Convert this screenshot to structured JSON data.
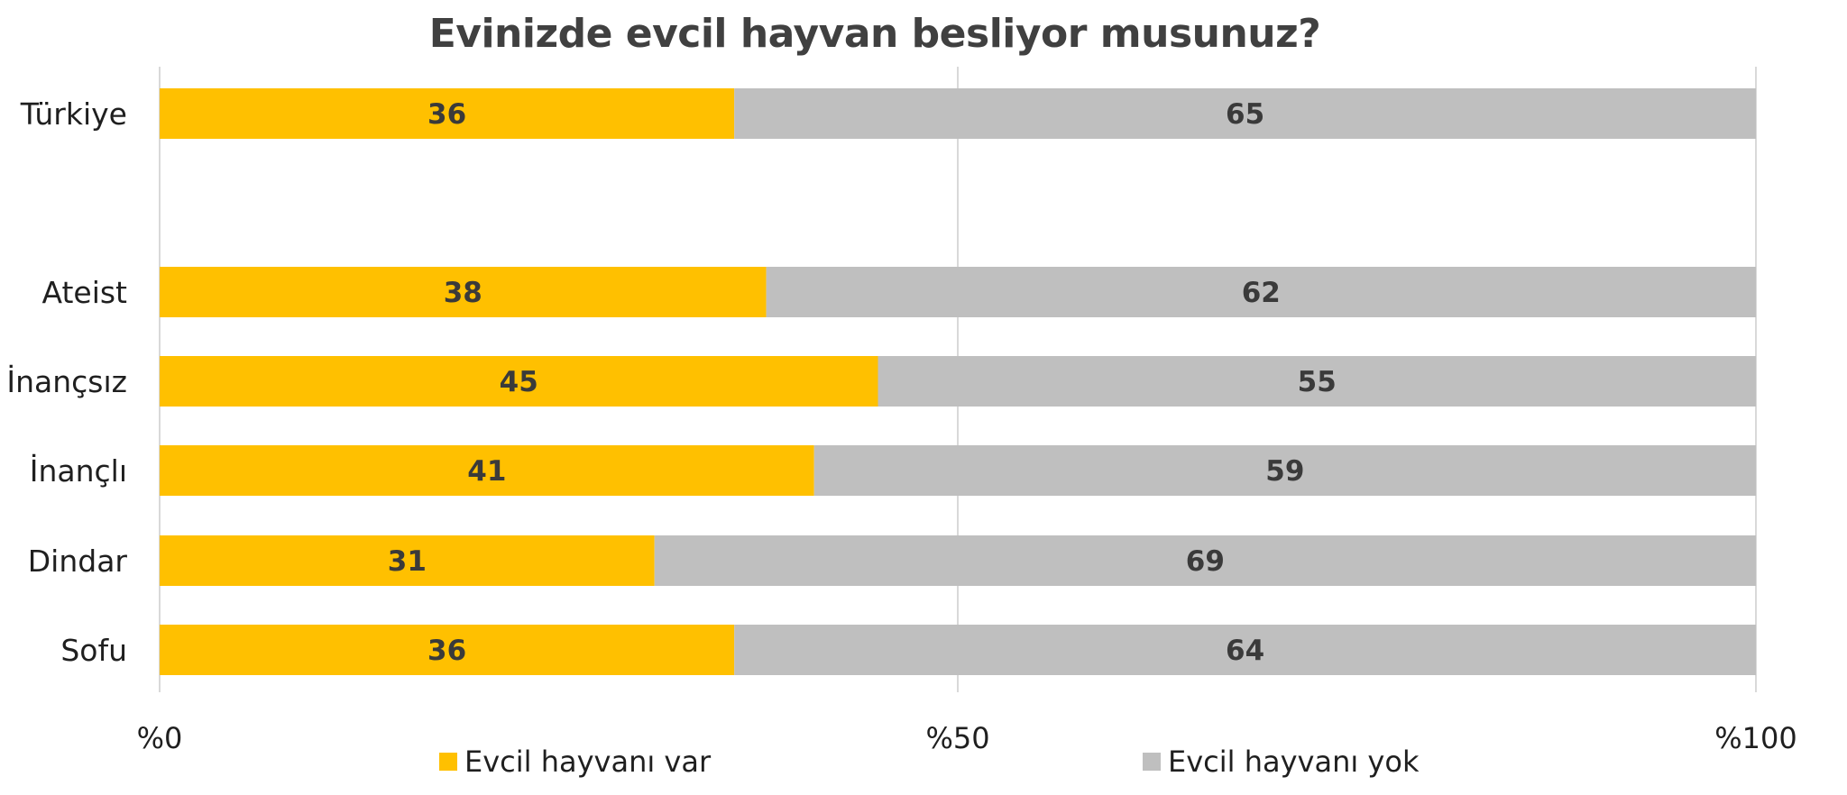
{
  "chart_data": {
    "type": "bar",
    "orientation": "horizontal",
    "stacked": true,
    "title": "Evinizde evcil hayvan besliyor musunuz?",
    "categories": [
      "Türkiye",
      "",
      "Ateist",
      "İnançsız",
      "İnançlı",
      "Dindar",
      "Sofu"
    ],
    "series": [
      {
        "name": "Evcil hayvanı var",
        "color": "#FFC000",
        "values": [
          36,
          null,
          38,
          45,
          41,
          31,
          36
        ]
      },
      {
        "name": "Evcil hayvanı yok",
        "color": "#BFBFBF",
        "values": [
          65,
          null,
          62,
          55,
          59,
          69,
          64
        ]
      }
    ],
    "xlim": [
      0,
      100
    ],
    "xticks": [
      0,
      50,
      100
    ],
    "xtick_labels": [
      "%0",
      "%50",
      "%100"
    ],
    "grid": true,
    "legend_position": "bottom",
    "gridline_color": "#D9D9D9"
  }
}
